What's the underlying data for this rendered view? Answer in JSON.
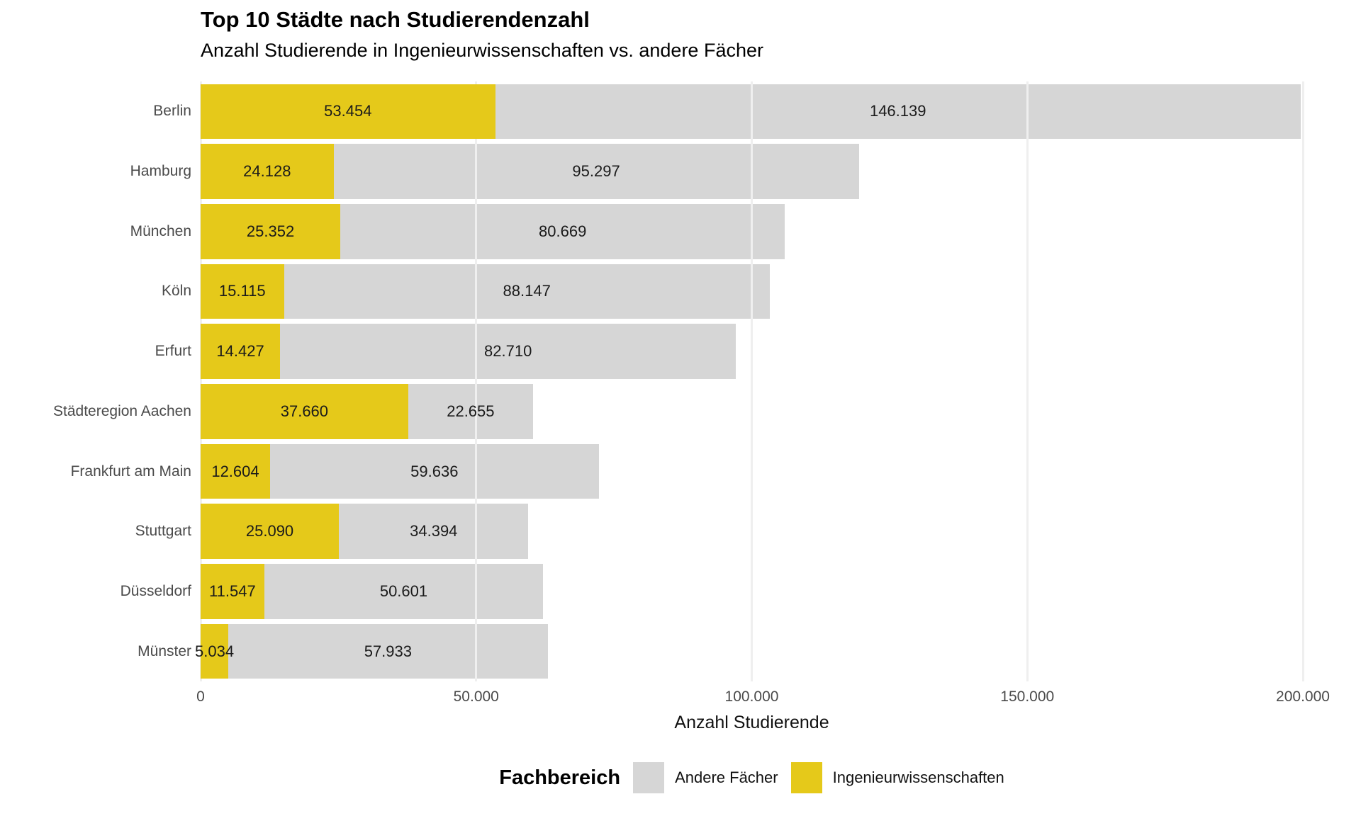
{
  "title": "Top 10 Städte nach Studierendenzahl",
  "subtitle": "Anzahl Studierende in Ingenieurwissenschaften vs. andere Fächer",
  "colors": {
    "engineering": "#E5C91A",
    "other": "#D6D6D6",
    "axis_text": "#4a4a4a",
    "value_text": "#1a1a1a",
    "gridline": "#efefef"
  },
  "chart_data": {
    "type": "bar",
    "orientation": "horizontal",
    "stacked": true,
    "title": "Top 10 Städte nach Studierendenzahl",
    "subtitle": "Anzahl Studierende in Ingenieurwissenschaften vs. andere Fächer",
    "xlabel": "Anzahl Studierende",
    "ylabel": "",
    "x_max": 200000,
    "grid": "vertical-major",
    "x_ticks": [
      {
        "value": 0,
        "label": "0"
      },
      {
        "value": 50000,
        "label": "50.000"
      },
      {
        "value": 100000,
        "label": "100.000"
      },
      {
        "value": 150000,
        "label": "150.000"
      },
      {
        "value": 200000,
        "label": "200.000"
      }
    ],
    "categories": [
      "Berlin",
      "Hamburg",
      "München",
      "Köln",
      "Erfurt",
      "Städteregion Aachen",
      "Frankfurt am Main",
      "Stuttgart",
      "Düsseldorf",
      "Münster"
    ],
    "series": [
      {
        "name": "Ingenieurwissenschaften",
        "color_key": "engineering",
        "values": [
          53454,
          24128,
          25352,
          15115,
          14427,
          37660,
          12604,
          25090,
          11547,
          5034
        ],
        "labels": [
          "53.454",
          "24.128",
          "25.352",
          "15.115",
          "14.427",
          "37.660",
          "12.604",
          "25.090",
          "11.547",
          "5.034"
        ]
      },
      {
        "name": "Andere Fächer",
        "color_key": "other",
        "values": [
          146139,
          95297,
          80669,
          88147,
          82710,
          22655,
          59636,
          34394,
          50601,
          57933
        ],
        "labels": [
          "146.139",
          "95.297",
          "80.669",
          "88.147",
          "82.710",
          "22.655",
          "59.636",
          "34.394",
          "50.601",
          "57.933"
        ]
      }
    ],
    "legend": {
      "position": "bottom",
      "title": "Fachbereich",
      "items": [
        {
          "label": "Andere Fächer",
          "color_key": "other"
        },
        {
          "label": "Ingenieurwissenschaften",
          "color_key": "engineering"
        }
      ]
    }
  }
}
